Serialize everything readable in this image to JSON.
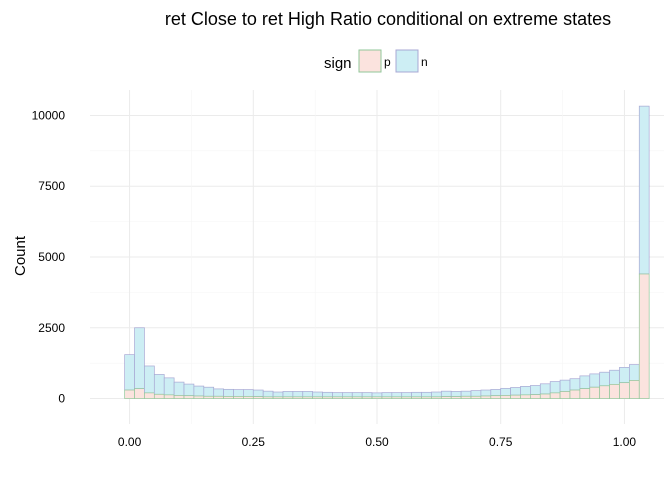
{
  "chart_data": {
    "type": "bar",
    "title": "ret Close to ret High Ratio conditional on extreme states",
    "xlabel": "",
    "ylabel": "Count",
    "xlim": [
      -0.08,
      1.08
    ],
    "ylim": [
      -900,
      10900
    ],
    "x_ticks": [
      {
        "value": 0,
        "label": "0.00"
      },
      {
        "value": 0.25,
        "label": "0.25"
      },
      {
        "value": 0.5,
        "label": "0.50"
      },
      {
        "value": 0.75,
        "label": "0.75"
      },
      {
        "value": 1,
        "label": "1.00"
      }
    ],
    "y_ticks": [
      {
        "value": 0,
        "label": "0"
      },
      {
        "value": 2500,
        "label": "2500"
      },
      {
        "value": 5000,
        "label": "5000"
      },
      {
        "value": 7500,
        "label": "7500"
      },
      {
        "value": 10000,
        "label": "10000"
      }
    ],
    "bin_width": 0.02,
    "bin_start": -0.01,
    "legend": {
      "title": "sign",
      "position": "top",
      "entries": [
        {
          "key": "p",
          "label": "p",
          "fill": "#fbe3de",
          "stroke": "#92c79a"
        },
        {
          "key": "n",
          "label": "n",
          "fill": "#cdeef4",
          "stroke": "#a8a8d4"
        }
      ]
    },
    "stacked": true,
    "series": [
      {
        "name": "p",
        "values": [
          300,
          350,
          200,
          150,
          130,
          110,
          100,
          90,
          80,
          80,
          75,
          75,
          75,
          70,
          60,
          60,
          60,
          60,
          60,
          60,
          60,
          60,
          60,
          60,
          60,
          60,
          60,
          60,
          60,
          60,
          60,
          60,
          70,
          70,
          80,
          80,
          90,
          100,
          110,
          120,
          130,
          140,
          160,
          200,
          250,
          300,
          350,
          400,
          450,
          500,
          560,
          640,
          4400
        ]
      },
      {
        "name": "n",
        "values": [
          1250,
          2150,
          950,
          700,
          600,
          470,
          410,
          350,
          320,
          260,
          250,
          240,
          240,
          230,
          200,
          170,
          190,
          190,
          190,
          170,
          160,
          150,
          150,
          150,
          150,
          140,
          150,
          150,
          150,
          160,
          160,
          170,
          190,
          180,
          180,
          200,
          210,
          220,
          250,
          270,
          300,
          320,
          360,
          400,
          400,
          400,
          450,
          470,
          480,
          500,
          540,
          560,
          5930
        ]
      }
    ]
  }
}
